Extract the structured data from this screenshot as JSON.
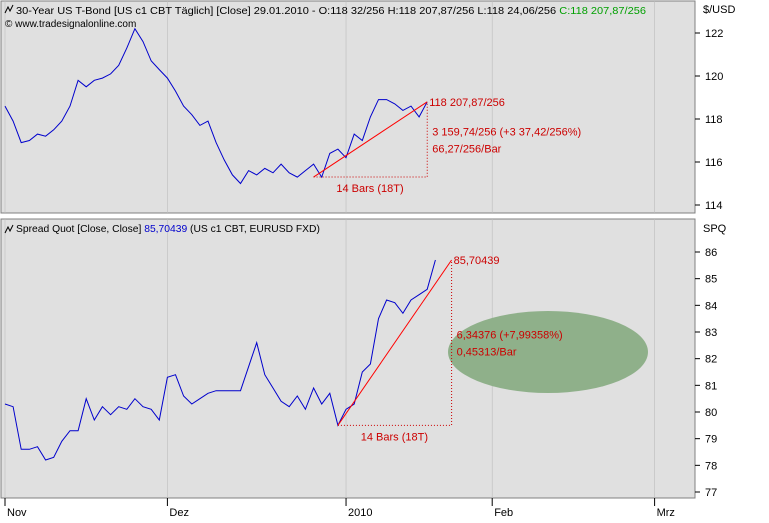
{
  "colors": {
    "background": "#ffffff",
    "plot_bg": "#e0e0e0",
    "price_line": "#0000cc",
    "trend_line": "#ff0000",
    "annotation": "#cc0000",
    "header_blue": "#0000cc",
    "header_green": "#00a000",
    "ellipse": "#8fb08a"
  },
  "top_panel": {
    "title_prefix": "30-Year US T-Bond [US c1 CBT  Täglich] [Close] 29.01.2010 - O:118 32/256 H:118 207,87/256 L:118 24,06/256 ",
    "title_close": "C:118 207,87/256",
    "watermark": "© www.tradesignalonline.com",
    "unit": "$/USD",
    "y_ticks": [
      "122",
      "120",
      "118",
      "116",
      "114"
    ],
    "end_label": "118 207,87/256",
    "change_label": "3 159,74/256 (+3 37,42/256%)",
    "rate_label": "66,27/256/Bar",
    "bars_label": "14 Bars (18T)"
  },
  "bottom_panel": {
    "title_prefix": "Spread Quot [Close, Close] ",
    "title_value": "85,70439",
    "title_suffix": " (US c1 CBT, EURUSD FXD)",
    "unit": "SPQ",
    "y_ticks": [
      "86",
      "85",
      "84",
      "83",
      "82",
      "81",
      "80",
      "79",
      "78",
      "77"
    ],
    "end_label": "85,70439",
    "change_label": "6,34376 (+7,99358%)",
    "rate_label": "0,45313/Bar",
    "bars_label": "14 Bars (18T)"
  },
  "x_axis": {
    "labels": [
      "Nov",
      "Dez",
      "2010",
      "Feb",
      "Mrz"
    ]
  },
  "chart_data": [
    {
      "type": "line",
      "title": "30-Year US T-Bond [US c1 CBT  Täglich] [Close]",
      "ylabel": "$/USD",
      "ylim": [
        114,
        123
      ],
      "x_label_positions": {
        "Nov": 0,
        "Dez": 20,
        "2010": 42,
        "Feb": 60,
        "Mrz": 80
      },
      "series": [
        {
          "name": "30-Year US T-Bond",
          "values": [
            118.6,
            117.9,
            116.9,
            117.0,
            117.3,
            117.2,
            117.5,
            117.9,
            118.6,
            119.8,
            119.5,
            119.8,
            119.9,
            120.1,
            120.5,
            121.3,
            122.2,
            121.6,
            120.7,
            120.3,
            119.9,
            119.3,
            118.6,
            118.2,
            117.7,
            117.9,
            116.9,
            116.1,
            115.4,
            115.0,
            115.6,
            115.4,
            115.7,
            115.5,
            115.9,
            115.5,
            115.3,
            115.6,
            115.9,
            115.3,
            116.4,
            116.6,
            116.2,
            117.3,
            117.0,
            118.1,
            118.9,
            118.9,
            118.7,
            118.4,
            118.6,
            118.1,
            118.8
          ]
        },
        {
          "name": "Trend",
          "values_at": [
            [
              38,
              115.3
            ],
            [
              52,
              118.8
            ]
          ]
        }
      ],
      "annotations": [
        "118 207,87/256",
        "3 159,74/256 (+3 37,42/256%)",
        "66,27/256/Bar",
        "14 Bars (18T)"
      ]
    },
    {
      "type": "line",
      "title": "Spread Quot [Close, Close] 85,70439 (US c1 CBT, EURUSD FXD)",
      "ylabel": "SPQ",
      "ylim": [
        76.7,
        86.3
      ],
      "x_label_positions": {
        "Nov": 0,
        "Dez": 20,
        "2010": 42,
        "Feb": 60,
        "Mrz": 80
      },
      "series": [
        {
          "name": "Spread Quot",
          "values": [
            80.3,
            80.2,
            78.6,
            78.6,
            78.7,
            78.2,
            78.3,
            78.9,
            79.3,
            79.3,
            80.5,
            79.7,
            80.2,
            79.9,
            80.2,
            80.1,
            80.5,
            80.2,
            80.1,
            79.7,
            81.3,
            81.4,
            80.6,
            80.3,
            80.5,
            80.7,
            80.8,
            80.8,
            80.8,
            80.8,
            81.7,
            82.6,
            81.4,
            80.9,
            80.4,
            80.2,
            80.6,
            80.1,
            80.9,
            80.3,
            80.7,
            79.5,
            80.1,
            80.3,
            81.5,
            81.8,
            83.5,
            84.2,
            84.1,
            83.7,
            84.2,
            84.4,
            84.6,
            85.7
          ]
        },
        {
          "name": "Trend",
          "values_at": [
            [
              41,
              79.5
            ],
            [
              55,
              85.7
            ]
          ]
        }
      ],
      "annotations": [
        "85,70439",
        "6,34376 (+7,99358%)",
        "0,45313/Bar",
        "14 Bars (18T)"
      ]
    }
  ]
}
